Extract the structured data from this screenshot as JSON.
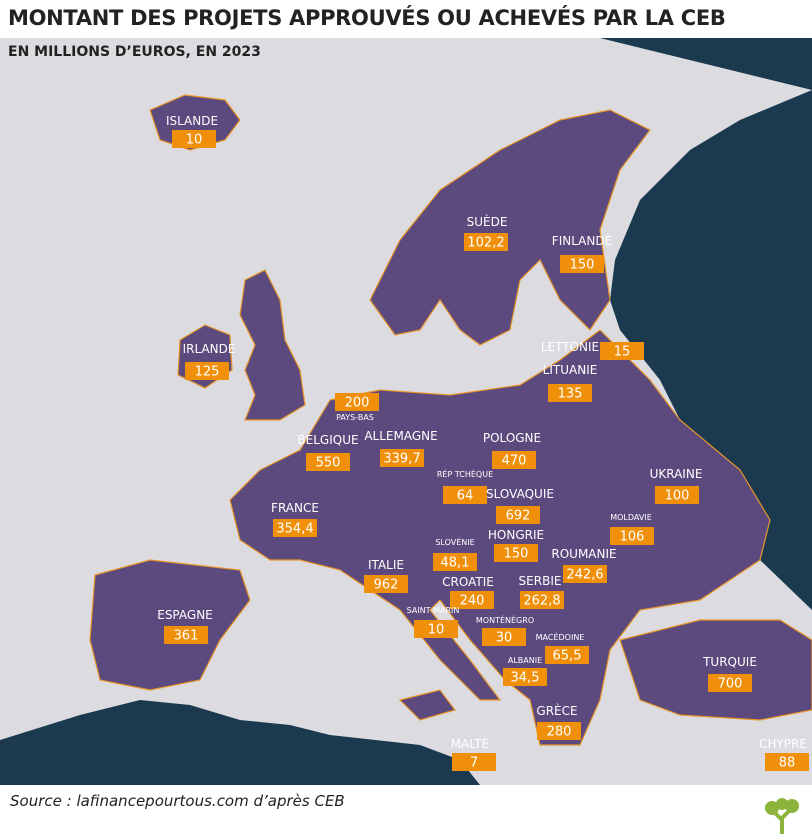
{
  "header": {
    "title": "MONTANT DES PROJETS APPROUVÉS OU ACHEVÉS PAR LA CEB",
    "subtitle": "EN MILLIONS D’EUROS, EN 2023"
  },
  "countries": [
    {
      "name": "ISLANDE",
      "value": "10"
    },
    {
      "name": "SUÈDE",
      "value": "102,2"
    },
    {
      "name": "FINLANDE",
      "value": "150"
    },
    {
      "name": "LETTONIE",
      "value": "15"
    },
    {
      "name": "LITUANIE",
      "value": "135"
    },
    {
      "name": "IRLANDE",
      "value": "125"
    },
    {
      "name": "PAYS-BAS",
      "value": "200"
    },
    {
      "name": "BELGIQUE",
      "value": "550"
    },
    {
      "name": "ALLEMAGNE",
      "value": "339,7"
    },
    {
      "name": "POLOGNE",
      "value": "470"
    },
    {
      "name": "RÉP TCHÈQUE",
      "value": "64"
    },
    {
      "name": "SLOVAQUIE",
      "value": "692"
    },
    {
      "name": "UKRAINE",
      "value": "100"
    },
    {
      "name": "MOLDAVIE",
      "value": "106"
    },
    {
      "name": "FRANCE",
      "value": "354,4"
    },
    {
      "name": "SLOVÉNIE",
      "value": "48,1"
    },
    {
      "name": "HONGRIE",
      "value": "150"
    },
    {
      "name": "ROUMANIE",
      "value": "242,6"
    },
    {
      "name": "ITALIE",
      "value": "962"
    },
    {
      "name": "CROATIE",
      "value": "240"
    },
    {
      "name": "SERBIE",
      "value": "262,8"
    },
    {
      "name": "SAINT MARIN",
      "value": "10"
    },
    {
      "name": "MONTÉNÉGRO",
      "value": "30"
    },
    {
      "name": "MACÉDOINE",
      "value": "65,5"
    },
    {
      "name": "ALBANIE",
      "value": "34,5"
    },
    {
      "name": "ESPAGNE",
      "value": "361"
    },
    {
      "name": "TURQUIE",
      "value": "700"
    },
    {
      "name": "GRÈCE",
      "value": "280"
    },
    {
      "name": "MALTE",
      "value": "7"
    },
    {
      "name": "CHYPRE",
      "value": "88"
    }
  ],
  "footer": {
    "source": "Source : lafinancepourtous.com d’après CEB"
  }
}
